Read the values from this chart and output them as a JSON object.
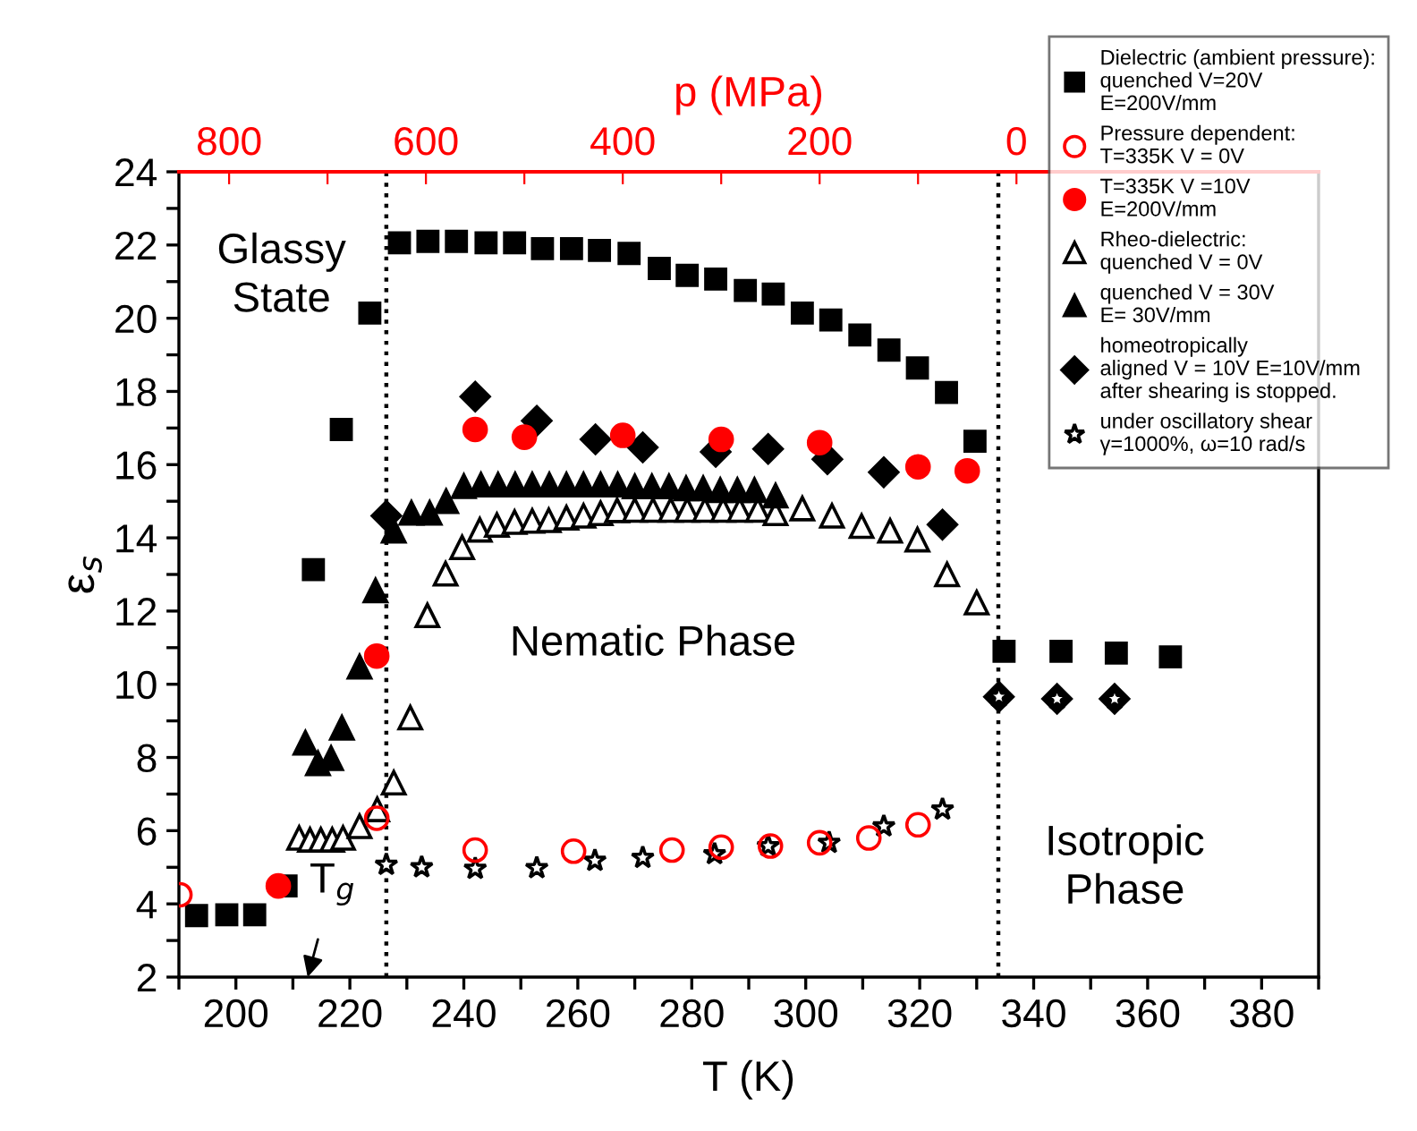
{
  "chart_data": {
    "type": "scatter",
    "xlabel": "T (K)",
    "ylabel": "ε$_{s}$",
    "x2label": "p (MPa)",
    "xlim": [
      190,
      390
    ],
    "xticks": [
      {
        "value": 190,
        "label": null
      },
      200,
      {
        "value": 210,
        "label": null
      },
      220,
      {
        "value": 230,
        "label": null
      },
      240,
      {
        "value": 250,
        "label": null
      },
      260,
      {
        "value": 270,
        "label": null
      },
      280,
      {
        "value": 290,
        "label": null
      },
      300,
      {
        "value": 310,
        "label": null
      },
      320,
      {
        "value": 330,
        "label": null
      },
      340,
      {
        "value": 350,
        "label": null
      },
      360,
      {
        "value": 370,
        "label": null
      },
      380,
      {
        "value": 390,
        "label": null
      }
    ],
    "x2lim": [
      851,
      -307
    ],
    "x2ticks": [
      800,
      {
        "value": 700,
        "label": null
      },
      600,
      {
        "value": 500,
        "label": null
      },
      400,
      {
        "value": 300,
        "label": null
      },
      200,
      {
        "value": 100,
        "label": null
      },
      0
    ],
    "ylim": [
      2,
      24
    ],
    "yticks": [
      2,
      {
        "value": 3,
        "label": null
      },
      4,
      {
        "value": 5,
        "label": null
      },
      6,
      {
        "value": 7,
        "label": null
      },
      8,
      {
        "value": 9,
        "label": null
      },
      10,
      {
        "value": 11,
        "label": null
      },
      12,
      {
        "value": 13,
        "label": null
      },
      14,
      {
        "value": 15,
        "label": null
      },
      16,
      {
        "value": 17,
        "label": null
      },
      18,
      {
        "value": 19,
        "label": null
      },
      20,
      {
        "value": 21,
        "label": null
      },
      22,
      {
        "value": 23,
        "label": null
      },
      24
    ],
    "grid": false,
    "legend": "top right",
    "series": [
      {
        "name": "Dielectric (ambient pressure):\nquenched V=20V\nE=200V/mm",
        "color": "#000000",
        "marker": "square",
        "x": [
          193.1,
          198.4,
          203.3,
          208.8,
          213.6,
          218.5,
          223.5,
          228.7,
          233.7,
          238.7,
          243.9,
          248.9,
          253.8,
          258.9,
          263.8,
          269,
          274.3,
          279.2,
          284.2,
          289.4,
          294.3,
          299.4,
          304.4,
          309.5,
          314.6,
          319.6,
          324.7,
          329.7,
          334.8,
          344.8,
          354.5,
          364
        ],
        "values": [
          3.68,
          3.7,
          3.7,
          4.49,
          13.13,
          16.96,
          20.14,
          22.06,
          22.1,
          22.1,
          22.06,
          22.06,
          21.9,
          21.9,
          21.85,
          21.77,
          21.36,
          21.17,
          21.07,
          20.76,
          20.66,
          20.14,
          19.95,
          19.54,
          19.13,
          18.64,
          17.97,
          16.64,
          10.9,
          10.9,
          10.85,
          10.75
        ]
      },
      {
        "name": "Pressure dependent:\nT=335K V = 0V",
        "color": "#ff0000",
        "marker": "circle",
        "axis": "x2",
        "x": [
          850,
          650,
          550,
          450,
          350,
          300,
          250,
          200,
          150,
          100
        ],
        "values": [
          4.25,
          6.34,
          5.47,
          5.44,
          5.47,
          5.55,
          5.58,
          5.67,
          5.8,
          6.16
        ]
      },
      {
        "name": "T=335K V =10V\nE=200V/mm",
        "color": "#ff0000",
        "marker": "circle",
        "axis": "x2",
        "x": [
          750,
          650,
          550,
          500,
          400,
          300,
          200,
          100,
          50
        ],
        "values": [
          4.49,
          10.77,
          16.96,
          16.75,
          16.8,
          16.69,
          16.6,
          15.94,
          15.83
        ]
      },
      {
        "name": "Rheo-dielectric:\nquenched V = 0V",
        "color": "#000000",
        "marker": "triangle",
        "x": [
          211.1,
          213,
          214.9,
          216.9,
          218.8,
          221.7,
          224.8,
          227.7,
          230.6,
          233.6,
          236.8,
          239.7,
          242.8,
          245.8,
          248.9,
          252,
          254.9,
          258,
          261,
          264,
          266.9,
          270,
          273.2,
          276.3,
          279.2,
          282.3,
          285.5,
          288.4,
          291.6,
          294.7,
          299.4,
          304.6,
          309.8,
          314.8,
          319.6,
          324.8,
          330
        ],
        "values": [
          5.8,
          5.75,
          5.75,
          5.75,
          5.8,
          6.12,
          6.58,
          7.31,
          9.09,
          11.88,
          13.02,
          13.74,
          14.22,
          14.35,
          14.43,
          14.46,
          14.48,
          14.55,
          14.6,
          14.67,
          14.75,
          14.76,
          14.76,
          14.76,
          14.76,
          14.76,
          14.76,
          14.76,
          14.76,
          14.67,
          14.8,
          14.6,
          14.32,
          14.19,
          13.95,
          13.0,
          12.23
        ]
      },
      {
        "name": "quenched V = 30V\nE= 30V/mm",
        "color": "#000000",
        "marker": "triangle",
        "x": [
          212.2,
          214.4,
          216.7,
          218.6,
          221.7,
          224.5,
          227.7,
          230.8,
          234,
          236.9,
          240,
          243,
          246,
          249,
          252,
          255,
          258,
          261,
          264,
          267,
          270,
          273,
          276,
          279,
          282,
          285,
          288,
          291,
          294.7
        ],
        "values": [
          8.4,
          7.84,
          7.98,
          8.81,
          10.48,
          12.56,
          14.19,
          14.68,
          14.68,
          15.0,
          15.41,
          15.45,
          15.45,
          15.45,
          15.45,
          15.45,
          15.45,
          15.45,
          15.45,
          15.45,
          15.4,
          15.4,
          15.4,
          15.35,
          15.35,
          15.3,
          15.3,
          15.3,
          15.15
        ]
      },
      {
        "name": "homeotropically\naligned V = 10V E=10V/mm\nafter shearing is stopped.",
        "color": "#000000",
        "marker": "diamond",
        "x": [
          226.4,
          242,
          252.8,
          263.1,
          271.4,
          284.2,
          293.4,
          303.8,
          313.7,
          324,
          333.9,
          344.1,
          354.2
        ],
        "values": [
          14.6,
          17.86,
          17.2,
          16.69,
          16.47,
          16.35,
          16.43,
          16.15,
          15.79,
          14.36,
          9.66,
          9.6,
          9.6
        ]
      },
      {
        "name": "under oscillatory shear\nγ=1000%, ω=10 rad/s",
        "color": "#000000",
        "marker": "star",
        "x": [
          226.4,
          232.6,
          242,
          252.8,
          263,
          271.4,
          284,
          293.4,
          304.1,
          313.7,
          324,
          333.9,
          344.1,
          354.2
        ],
        "values": [
          5.07,
          5.0,
          4.96,
          4.98,
          5.18,
          5.26,
          5.36,
          5.58,
          5.67,
          6.12,
          6.58,
          9.66,
          9.6,
          9.6
        ]
      }
    ],
    "ref_lines": [
      {
        "axis": "x",
        "value": 226.4,
        "color": "#000000",
        "line_style": "dotted"
      },
      {
        "axis": "x",
        "value": 333.8,
        "color": "#000000",
        "line_style": "dotted"
      }
    ],
    "annotations": [
      "Glassy\nState",
      "Nematic Phase",
      "Isotropic\nPhase",
      "T$_{g}$"
    ]
  }
}
